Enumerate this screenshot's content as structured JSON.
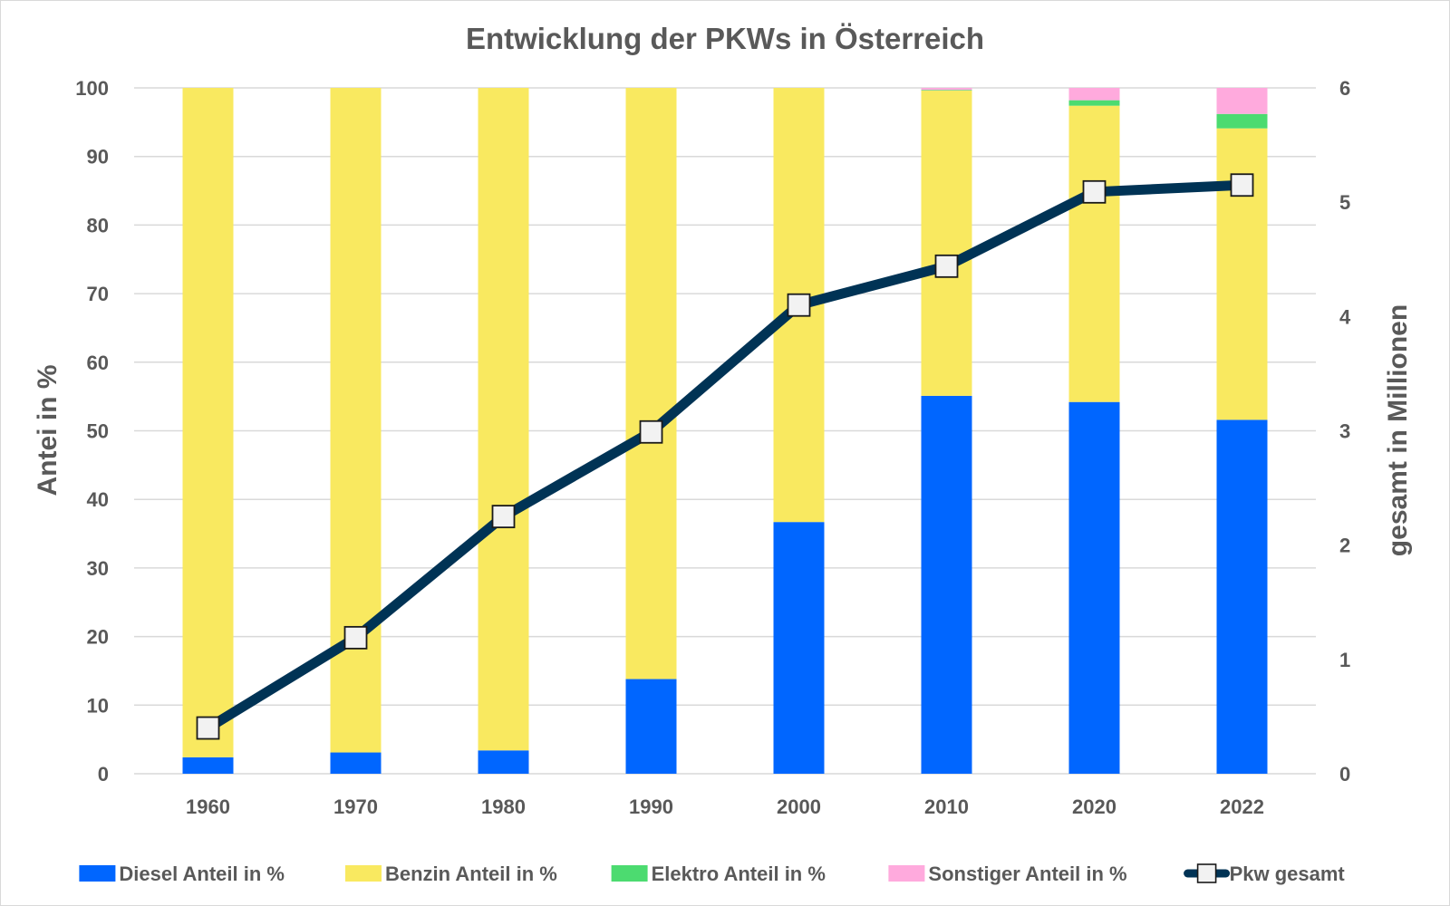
{
  "chart_data": {
    "type": "bar",
    "stacked": true,
    "title": "Entwicklung der PKWs in Österreich",
    "categories": [
      "1960",
      "1970",
      "1980",
      "1990",
      "2000",
      "2010",
      "2020",
      "2022"
    ],
    "ylabel": "Antei in %",
    "ylim": [
      0,
      100
    ],
    "yticks": [
      "0",
      "10",
      "20",
      "30",
      "40",
      "50",
      "60",
      "70",
      "80",
      "90",
      "100"
    ],
    "y2label": "gesamt in Millionen",
    "y2lim": [
      0,
      6
    ],
    "y2ticks": [
      "0",
      "1",
      "2",
      "3",
      "4",
      "5",
      "6"
    ],
    "grid": true,
    "legend_position": "bottom",
    "series": [
      {
        "name": "Diesel Anteil in %",
        "type": "bar",
        "axis": "left",
        "color": "#0066ff",
        "values": [
          2.4,
          3.1,
          3.4,
          13.8,
          36.7,
          55.1,
          54.2,
          51.6
        ]
      },
      {
        "name": "Benzin Anteil in %",
        "type": "bar",
        "axis": "left",
        "color": "#f9e960",
        "values": [
          97.6,
          96.9,
          96.6,
          86.2,
          63.3,
          44.5,
          43.2,
          42.5
        ]
      },
      {
        "name": "Elektro Anteil in %",
        "type": "bar",
        "axis": "left",
        "color": "#4cdb70",
        "values": [
          0,
          0,
          0,
          0,
          0,
          0.1,
          0.8,
          2.1
        ]
      },
      {
        "name": "Sonstiger Anteil in %",
        "type": "bar",
        "axis": "left",
        "color": "#ffaadd",
        "values": [
          0,
          0,
          0,
          0,
          0,
          0.3,
          1.8,
          3.8
        ]
      },
      {
        "name": "Pkw gesamt",
        "type": "line",
        "axis": "right",
        "color": "#003355",
        "values": [
          0.4,
          1.19,
          2.25,
          2.99,
          4.1,
          4.44,
          5.09,
          5.15
        ]
      }
    ]
  }
}
